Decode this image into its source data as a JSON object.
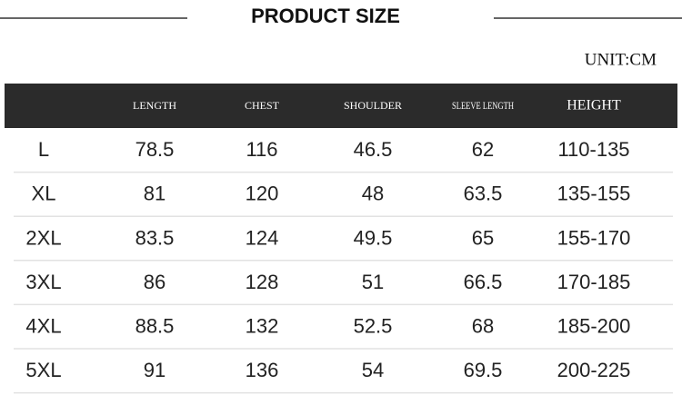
{
  "header": {
    "title": "PRODUCT SIZE",
    "unit": "UNIT:CM"
  },
  "table": {
    "columns": [
      "LENGTH",
      "CHEST",
      "SHOULDER",
      "SLEEVE LENGTH",
      "HEIGHT"
    ],
    "rows": [
      [
        "L",
        78.5,
        116,
        46.5,
        62,
        "110-135"
      ],
      [
        "XL",
        81,
        120,
        48,
        63.5,
        "135-155"
      ],
      [
        "2XL",
        83.5,
        124,
        49.5,
        65,
        "155-170"
      ],
      [
        "3XL",
        86,
        128,
        51,
        66.5,
        "170-185"
      ],
      [
        "4XL",
        88.5,
        132,
        52.5,
        68,
        "185-200"
      ],
      [
        "5XL",
        91,
        136,
        54,
        69.5,
        "200-225"
      ]
    ]
  }
}
